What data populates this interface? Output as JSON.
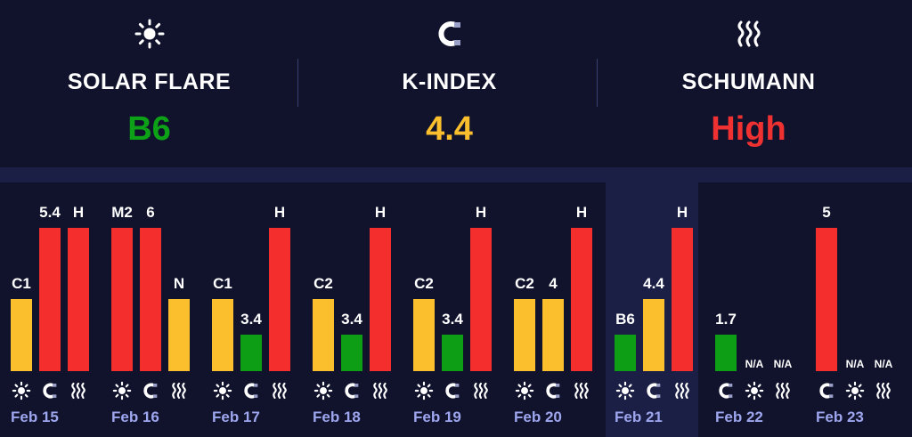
{
  "summary": [
    {
      "icon": "sun-icon",
      "label": "SOLAR FLARE",
      "value": "B6",
      "color": "#0da117"
    },
    {
      "icon": "magnet-icon",
      "label": "K-INDEX",
      "value": "4.4",
      "color": "#fbbf2d"
    },
    {
      "icon": "waves-icon",
      "label": "SCHUMANN",
      "value": "High",
      "color": "#f03131"
    }
  ],
  "colors": {
    "red": "#f42d2d",
    "yellow": "#fbbf2d",
    "green": "#0d9e16",
    "date": "#9da6ee",
    "highlight": "#1b1f45"
  },
  "chart_data": {
    "type": "bar",
    "highlighted_day": "Feb 21",
    "series_order": [
      "solar",
      "kindex",
      "schumann"
    ],
    "days": [
      {
        "date": "Feb 15",
        "bars": [
          {
            "series": "solar",
            "label": "C1",
            "level": 0.5,
            "color": "yellow"
          },
          {
            "series": "kindex",
            "label": "5.4",
            "level": 1.0,
            "color": "red"
          },
          {
            "series": "schumann",
            "label": "H",
            "level": 1.0,
            "color": "red"
          }
        ]
      },
      {
        "date": "Feb 16",
        "bars": [
          {
            "series": "solar",
            "label": "M2",
            "level": 1.0,
            "color": "red"
          },
          {
            "series": "kindex",
            "label": "6",
            "level": 1.0,
            "color": "red"
          },
          {
            "series": "schumann",
            "label": "N",
            "level": 0.5,
            "color": "yellow"
          }
        ]
      },
      {
        "date": "Feb 17",
        "bars": [
          {
            "series": "solar",
            "label": "C1",
            "level": 0.5,
            "color": "yellow"
          },
          {
            "series": "kindex",
            "label": "3.4",
            "level": 0.25,
            "color": "green"
          },
          {
            "series": "schumann",
            "label": "H",
            "level": 1.0,
            "color": "red"
          }
        ]
      },
      {
        "date": "Feb 18",
        "bars": [
          {
            "series": "solar",
            "label": "C2",
            "level": 0.5,
            "color": "yellow"
          },
          {
            "series": "kindex",
            "label": "3.4",
            "level": 0.25,
            "color": "green"
          },
          {
            "series": "schumann",
            "label": "H",
            "level": 1.0,
            "color": "red"
          }
        ]
      },
      {
        "date": "Feb 19",
        "bars": [
          {
            "series": "solar",
            "label": "C2",
            "level": 0.5,
            "color": "yellow"
          },
          {
            "series": "kindex",
            "label": "3.4",
            "level": 0.25,
            "color": "green"
          },
          {
            "series": "schumann",
            "label": "H",
            "level": 1.0,
            "color": "red"
          }
        ]
      },
      {
        "date": "Feb 20",
        "bars": [
          {
            "series": "solar",
            "label": "C2",
            "level": 0.5,
            "color": "yellow"
          },
          {
            "series": "kindex",
            "label": "4",
            "level": 0.5,
            "color": "yellow"
          },
          {
            "series": "schumann",
            "label": "H",
            "level": 1.0,
            "color": "red"
          }
        ]
      },
      {
        "date": "Feb 21",
        "bars": [
          {
            "series": "solar",
            "label": "B6",
            "level": 0.25,
            "color": "green"
          },
          {
            "series": "kindex",
            "label": "4.4",
            "level": 0.5,
            "color": "yellow"
          },
          {
            "series": "schumann",
            "label": "H",
            "level": 1.0,
            "color": "red"
          }
        ]
      },
      {
        "date": "Feb 22",
        "bars": [
          {
            "series": "kindex",
            "label": "1.7",
            "level": 0.25,
            "color": "green"
          },
          {
            "series": "solar",
            "label": "N/A",
            "level": 0,
            "color": "none"
          },
          {
            "series": "schumann",
            "label": "N/A",
            "level": 0,
            "color": "none"
          }
        ]
      },
      {
        "date": "Feb 23",
        "bars": [
          {
            "series": "kindex",
            "label": "5",
            "level": 1.0,
            "color": "red"
          },
          {
            "series": "solar",
            "label": "N/A",
            "level": 0,
            "color": "none"
          },
          {
            "series": "schumann",
            "label": "N/A",
            "level": 0,
            "color": "none"
          }
        ]
      }
    ]
  }
}
